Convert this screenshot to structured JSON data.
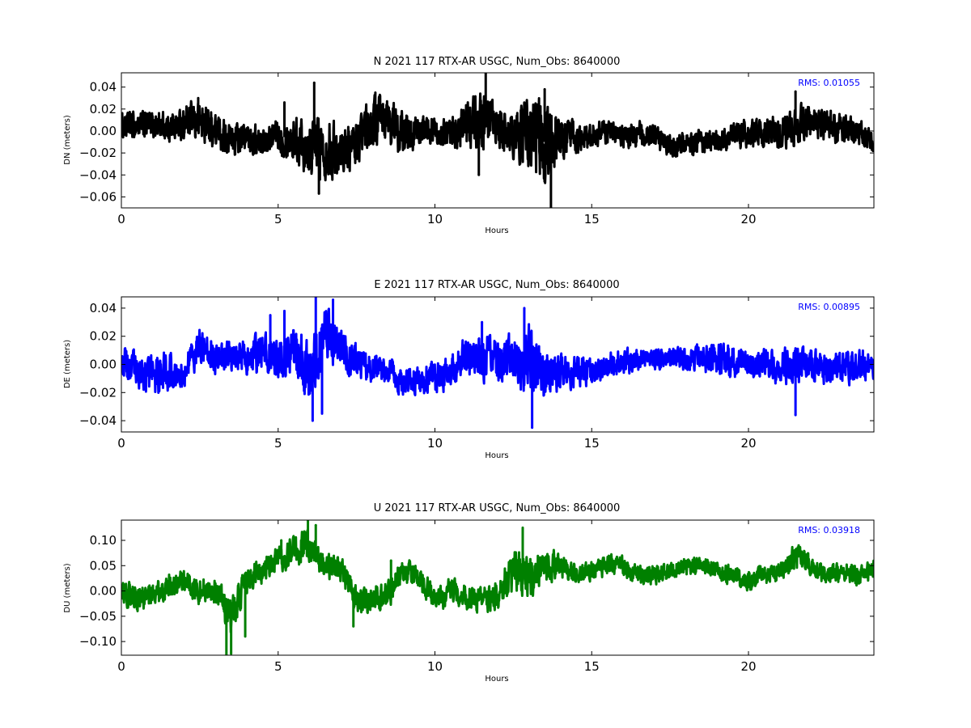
{
  "chart_data": [
    {
      "type": "line",
      "title": "N 2021 117 RTX-AR  USGC, Num_Obs: 8640000",
      "xlabel": "Hours",
      "ylabel": "DN (meters)",
      "xlim": [
        0,
        24
      ],
      "ylim": [
        -0.07,
        0.053
      ],
      "xticks": [
        0,
        5,
        10,
        15,
        20
      ],
      "xtick_labels": [
        "0",
        "5",
        "10",
        "15",
        "20"
      ],
      "yticks": [
        -0.06,
        -0.04,
        -0.02,
        0.0,
        0.02,
        0.04
      ],
      "ytick_labels": [
        "−0.06",
        "−0.04",
        "−0.02",
        "0.00",
        "0.02",
        "0.04"
      ],
      "annotation": "RMS:  0.01055",
      "annotation_color": "#0000ff",
      "grid": false,
      "color": "#000000",
      "envelope": {
        "x": [
          0,
          0.5,
          1,
          1.5,
          2,
          2.5,
          3,
          3.5,
          4,
          4.5,
          5,
          5.5,
          6,
          6.5,
          7,
          7.5,
          8,
          8.5,
          9,
          9.5,
          10,
          10.5,
          11,
          11.5,
          12,
          12.5,
          13,
          13.5,
          14,
          14.5,
          15,
          15.5,
          16,
          16.5,
          17,
          17.5,
          18,
          18.5,
          19,
          19.5,
          20,
          20.5,
          21,
          21.5,
          22,
          22.5,
          23,
          23.5,
          24
        ],
        "center": [
          0.004,
          0.005,
          0.006,
          0.004,
          0.006,
          0.01,
          0.0,
          -0.008,
          -0.006,
          -0.01,
          -0.004,
          -0.008,
          -0.01,
          -0.015,
          -0.018,
          -0.012,
          0.008,
          0.01,
          -0.004,
          0.0,
          0.002,
          -0.003,
          0.005,
          0.008,
          0.0,
          -0.005,
          0.002,
          -0.01,
          -0.004,
          -0.01,
          -0.004,
          0.0,
          -0.005,
          -0.003,
          -0.006,
          -0.013,
          -0.012,
          -0.01,
          -0.011,
          -0.004,
          -0.003,
          -0.002,
          0.0,
          0.003,
          0.008,
          0.005,
          0.0,
          0.0,
          -0.01
        ],
        "half_width": [
          0.012,
          0.013,
          0.014,
          0.013,
          0.015,
          0.02,
          0.016,
          0.016,
          0.014,
          0.014,
          0.016,
          0.02,
          0.03,
          0.028,
          0.022,
          0.02,
          0.024,
          0.024,
          0.02,
          0.014,
          0.014,
          0.014,
          0.024,
          0.03,
          0.022,
          0.022,
          0.035,
          0.04,
          0.025,
          0.015,
          0.012,
          0.011,
          0.011,
          0.012,
          0.012,
          0.012,
          0.012,
          0.012,
          0.012,
          0.012,
          0.013,
          0.014,
          0.016,
          0.02,
          0.016,
          0.014,
          0.015,
          0.012,
          0.01
        ]
      },
      "spikes": {
        "x": [
          2.45,
          5.2,
          6.15,
          6.3,
          8.1,
          11.4,
          11.62,
          13.5,
          13.7,
          21.5
        ],
        "y": [
          0.03,
          0.026,
          0.044,
          -0.057,
          0.035,
          -0.04,
          0.053,
          0.038,
          -0.07,
          0.036
        ]
      }
    },
    {
      "type": "line",
      "title": "E 2021 117 RTX-AR  USGC, Num_Obs: 8640000",
      "xlabel": "Hours",
      "ylabel": "DE (meters)",
      "xlim": [
        0,
        24
      ],
      "ylim": [
        -0.048,
        0.048
      ],
      "xticks": [
        0,
        5,
        10,
        15,
        20
      ],
      "xtick_labels": [
        "0",
        "5",
        "10",
        "15",
        "20"
      ],
      "yticks": [
        -0.04,
        -0.02,
        0.0,
        0.02,
        0.04
      ],
      "ytick_labels": [
        "−0.04",
        "−0.02",
        "0.00",
        "0.02",
        "0.04"
      ],
      "annotation": "RMS:  0.00895",
      "annotation_color": "#0000ff",
      "grid": false,
      "color": "#0000ff",
      "envelope": {
        "x": [
          0,
          0.5,
          1,
          1.5,
          2,
          2.5,
          3,
          3.5,
          4,
          4.5,
          5,
          5.5,
          6,
          6.5,
          7,
          7.5,
          8,
          8.5,
          9,
          9.5,
          10,
          10.5,
          11,
          11.5,
          12,
          12.5,
          13,
          13.5,
          14,
          14.5,
          15,
          15.5,
          16,
          16.5,
          17,
          17.5,
          18,
          18.5,
          19,
          19.5,
          20,
          20.5,
          21,
          21.5,
          22,
          22.5,
          23,
          23.5,
          24
        ],
        "center": [
          0.003,
          -0.005,
          -0.008,
          -0.005,
          -0.008,
          0.015,
          0.005,
          0.005,
          0.005,
          0.008,
          0.005,
          0.01,
          -0.012,
          0.022,
          0.012,
          0.002,
          -0.002,
          -0.006,
          -0.012,
          -0.01,
          -0.01,
          -0.004,
          0.005,
          0.005,
          0.004,
          0.002,
          0.002,
          -0.004,
          -0.006,
          -0.006,
          -0.004,
          -0.001,
          0.002,
          0.003,
          0.004,
          0.004,
          0.004,
          0.004,
          0.004,
          0.003,
          0.001,
          0.0,
          -0.002,
          0.001,
          0.0,
          -0.003,
          -0.002,
          -0.002,
          0.0
        ],
        "half_width": [
          0.012,
          0.012,
          0.014,
          0.014,
          0.012,
          0.012,
          0.012,
          0.012,
          0.012,
          0.014,
          0.016,
          0.02,
          0.025,
          0.02,
          0.016,
          0.012,
          0.01,
          0.01,
          0.01,
          0.01,
          0.012,
          0.012,
          0.014,
          0.018,
          0.016,
          0.02,
          0.025,
          0.02,
          0.014,
          0.011,
          0.01,
          0.01,
          0.009,
          0.008,
          0.008,
          0.008,
          0.008,
          0.009,
          0.012,
          0.012,
          0.01,
          0.01,
          0.012,
          0.013,
          0.012,
          0.011,
          0.011,
          0.012,
          0.01
        ]
      },
      "spikes": {
        "x": [
          4.75,
          5.2,
          6.1,
          6.2,
          6.4,
          6.75,
          11.5,
          12.85,
          13.1,
          21.5
        ],
        "y": [
          0.035,
          0.038,
          -0.04,
          0.048,
          -0.035,
          0.046,
          0.03,
          0.04,
          -0.045,
          -0.036
        ]
      }
    },
    {
      "type": "line",
      "title": "U 2021 117 RTX-AR  USGC, Num_Obs: 8640000",
      "xlabel": "Hours",
      "ylabel": "DU (meters)",
      "xlim": [
        0,
        24
      ],
      "ylim": [
        -0.127,
        0.14
      ],
      "xticks": [
        0,
        5,
        10,
        15,
        20
      ],
      "xtick_labels": [
        "0",
        "5",
        "10",
        "15",
        "20"
      ],
      "yticks": [
        -0.1,
        -0.05,
        0.0,
        0.05,
        0.1
      ],
      "ytick_labels": [
        "−0.10",
        "−0.05",
        "0.00",
        "0.05",
        "0.10"
      ],
      "annotation": "RMS:  0.03918",
      "annotation_color": "#0000ff",
      "grid": false,
      "color": "#008000",
      "envelope": {
        "x": [
          0,
          0.5,
          1,
          1.5,
          2,
          2.5,
          3,
          3.5,
          4,
          4.5,
          5,
          5.5,
          6,
          6.5,
          7,
          7.5,
          8,
          8.5,
          9,
          9.5,
          10,
          10.5,
          11,
          11.5,
          12,
          12.5,
          13,
          13.5,
          14,
          14.5,
          15,
          15.5,
          16,
          16.5,
          17,
          17.5,
          18,
          18.5,
          19,
          19.5,
          20,
          20.5,
          21,
          21.5,
          22,
          22.5,
          23,
          23.5,
          24
        ],
        "center": [
          0.0,
          -0.02,
          -0.01,
          0.01,
          0.02,
          0.0,
          0.0,
          -0.05,
          0.02,
          0.04,
          0.06,
          0.08,
          0.09,
          0.05,
          0.04,
          -0.01,
          -0.02,
          -0.01,
          0.04,
          0.03,
          -0.02,
          0.0,
          -0.01,
          -0.02,
          -0.01,
          0.04,
          0.03,
          0.05,
          0.05,
          0.03,
          0.04,
          0.05,
          0.05,
          0.03,
          0.03,
          0.04,
          0.05,
          0.05,
          0.04,
          0.03,
          0.02,
          0.03,
          0.04,
          0.07,
          0.05,
          0.03,
          0.04,
          0.03,
          0.04
        ],
        "half_width": [
          0.025,
          0.025,
          0.025,
          0.025,
          0.025,
          0.025,
          0.025,
          0.04,
          0.03,
          0.025,
          0.025,
          0.03,
          0.035,
          0.025,
          0.025,
          0.03,
          0.03,
          0.03,
          0.025,
          0.025,
          0.025,
          0.025,
          0.025,
          0.025,
          0.03,
          0.04,
          0.045,
          0.035,
          0.025,
          0.02,
          0.02,
          0.02,
          0.02,
          0.018,
          0.018,
          0.018,
          0.018,
          0.018,
          0.018,
          0.02,
          0.022,
          0.02,
          0.02,
          0.025,
          0.02,
          0.02,
          0.02,
          0.02,
          0.02
        ]
      },
      "spikes": {
        "x": [
          3.35,
          3.5,
          3.95,
          5.1,
          5.95,
          6.2,
          7.4,
          8.6,
          12.8,
          21.6
        ],
        "y": [
          -0.127,
          -0.124,
          -0.09,
          0.1,
          0.14,
          0.13,
          -0.07,
          0.06,
          0.125,
          0.09
        ]
      }
    }
  ]
}
